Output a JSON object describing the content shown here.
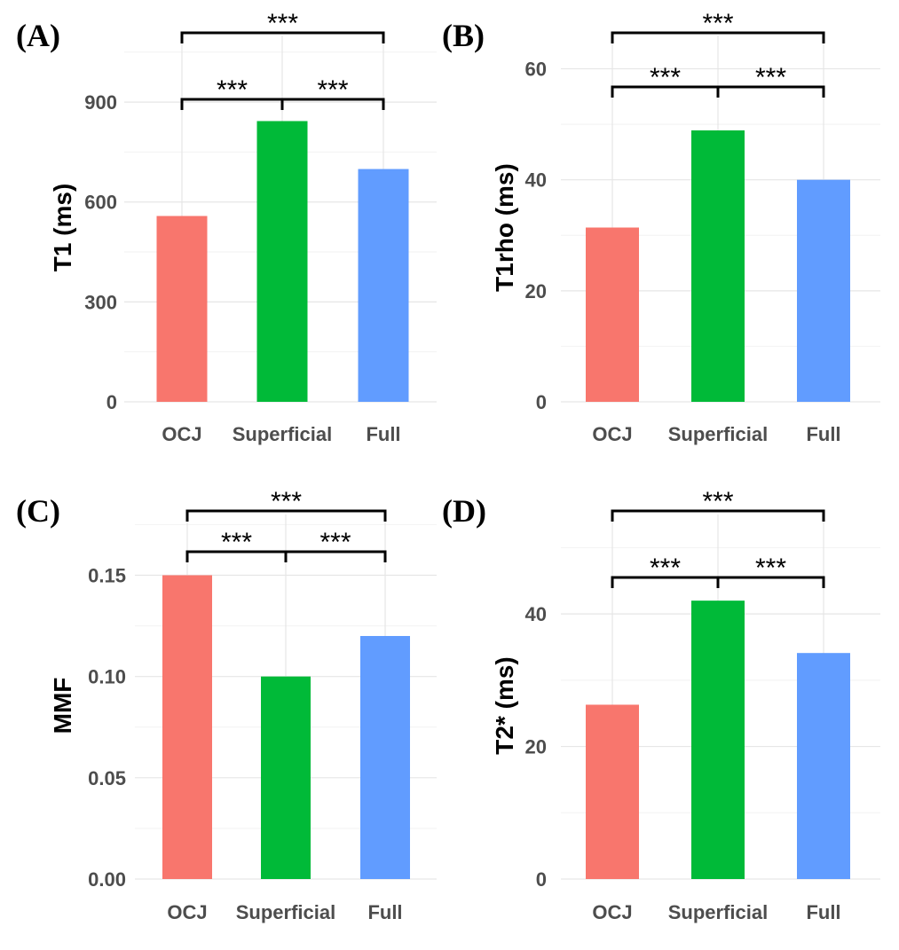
{
  "chart_data": [
    {
      "type": "bar",
      "panel_label": "(A)",
      "title": "",
      "categories": [
        "OCJ",
        "Superficial",
        "Full"
      ],
      "values": [
        558,
        843,
        699
      ],
      "colors": [
        "#F8766D",
        "#00BA38",
        "#619CFF"
      ],
      "xlabel": "",
      "ylabel": "T1 (ms)",
      "ylim": [
        0,
        1100
      ],
      "yticks": [
        0,
        300,
        600,
        900
      ],
      "ytick_labels": [
        "0",
        "300",
        "600",
        "900"
      ],
      "minor_grid": [
        150,
        450,
        750,
        1050
      ],
      "grid": true,
      "significance": [
        {
          "from": 0,
          "to": 1,
          "label": "***",
          "level": 1
        },
        {
          "from": 1,
          "to": 2,
          "label": "***",
          "level": 1
        },
        {
          "from": 0,
          "to": 2,
          "label": "***",
          "level": 2
        }
      ]
    },
    {
      "type": "bar",
      "panel_label": "(B)",
      "title": "",
      "categories": [
        "OCJ",
        "Superficial",
        "Full"
      ],
      "values": [
        31.4,
        48.9,
        40
      ],
      "colors": [
        "#F8766D",
        "#00BA38",
        "#619CFF"
      ],
      "xlabel": "",
      "ylabel": "T1rho (ms)",
      "ylim": [
        0,
        66
      ],
      "yticks": [
        0,
        20,
        40,
        60
      ],
      "ytick_labels": [
        "0",
        "20",
        "40",
        "60"
      ],
      "minor_grid": [
        10,
        30,
        50
      ],
      "grid": true,
      "significance": [
        {
          "from": 0,
          "to": 1,
          "label": "***",
          "level": 1
        },
        {
          "from": 1,
          "to": 2,
          "label": "***",
          "level": 1
        },
        {
          "from": 0,
          "to": 2,
          "label": "***",
          "level": 2
        }
      ]
    },
    {
      "type": "bar",
      "panel_label": "(C)",
      "title": "",
      "categories": [
        "OCJ",
        "Superficial",
        "Full"
      ],
      "values": [
        0.15,
        0.1,
        0.12
      ],
      "colors": [
        "#F8766D",
        "#00BA38",
        "#619CFF"
      ],
      "xlabel": "",
      "ylabel": "MMF",
      "ylim": [
        0,
        0.18
      ],
      "yticks": [
        0,
        0.05,
        0.1,
        0.15
      ],
      "ytick_labels": [
        "0.00",
        "0.05",
        "0.10",
        "0.15"
      ],
      "minor_grid": [
        0.025,
        0.075,
        0.125,
        0.175
      ],
      "grid": true,
      "significance": [
        {
          "from": 0,
          "to": 1,
          "label": "***",
          "level": 1
        },
        {
          "from": 1,
          "to": 2,
          "label": "***",
          "level": 1
        },
        {
          "from": 0,
          "to": 2,
          "label": "***",
          "level": 2
        }
      ]
    },
    {
      "type": "bar",
      "panel_label": "(D)",
      "title": "",
      "categories": [
        "OCJ",
        "Superficial",
        "Full"
      ],
      "values": [
        26.3,
        42,
        34.1
      ],
      "colors": [
        "#F8766D",
        "#00BA38",
        "#619CFF"
      ],
      "xlabel": "",
      "ylabel": "T2* (ms)",
      "ylim": [
        0,
        55
      ],
      "yticks": [
        0,
        20,
        40
      ],
      "ytick_labels": [
        "0",
        "20",
        "40"
      ],
      "minor_grid": [
        10,
        30,
        50
      ],
      "grid": true,
      "significance": [
        {
          "from": 0,
          "to": 1,
          "label": "***",
          "level": 1
        },
        {
          "from": 1,
          "to": 2,
          "label": "***",
          "level": 1
        },
        {
          "from": 0,
          "to": 2,
          "label": "***",
          "level": 2
        }
      ]
    }
  ]
}
